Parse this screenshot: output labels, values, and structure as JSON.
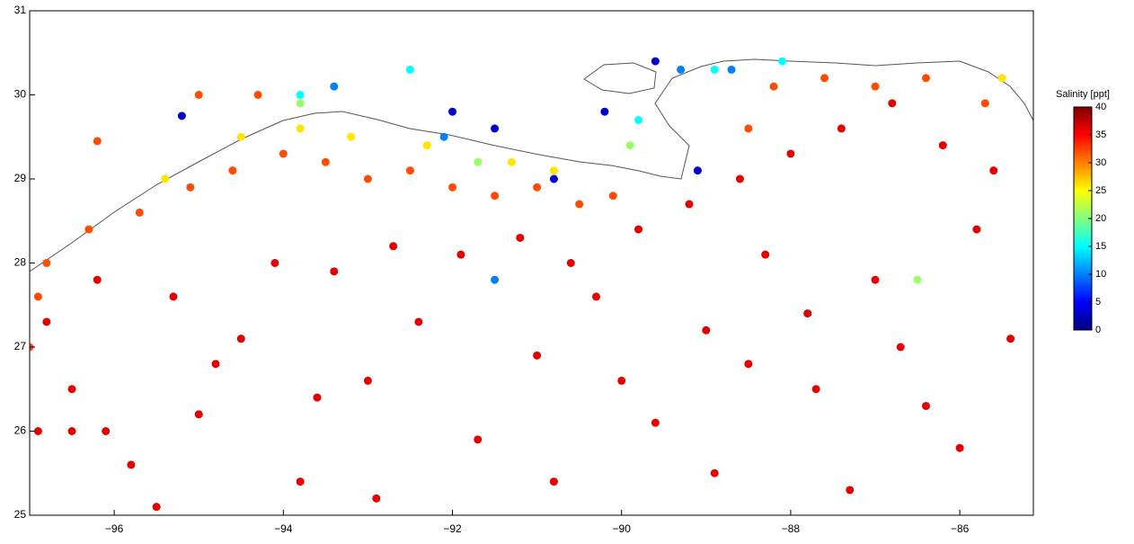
{
  "chart_data": {
    "type": "scatter",
    "xlim": [
      -97,
      -85.13
    ],
    "ylim": [
      25,
      31
    ],
    "xticks": [
      {
        "value": -96,
        "label": "−96"
      },
      {
        "value": -94,
        "label": "−94"
      },
      {
        "value": -92,
        "label": "−92"
      },
      {
        "value": -90,
        "label": "−90"
      },
      {
        "value": -88,
        "label": "−88"
      },
      {
        "value": -86,
        "label": "−86"
      }
    ],
    "yticks": [
      25,
      26,
      27,
      28,
      29,
      30,
      31
    ],
    "colorbar": {
      "label": "Salinity [ppt]",
      "lim": [
        0,
        40
      ],
      "ticks": [
        0,
        5,
        10,
        15,
        20,
        25,
        30,
        35,
        40
      ],
      "colormap": "jet"
    },
    "x": [
      -96.5,
      -95.8,
      -95,
      -94.5,
      -93.8,
      -93,
      -92.4,
      -91.7,
      -91,
      -90.3,
      -89.6,
      -89,
      -88.3,
      -87.7,
      -87,
      -86.4,
      -85.8,
      -85.4,
      -96.8,
      -96.2,
      -95.3,
      -94.1,
      -93.4,
      -92.7,
      -91.9,
      -91.2,
      -90.6,
      -89.8,
      -89.2,
      -88.6,
      -88,
      -87.4,
      -86.8,
      -86.2,
      -85.6,
      -88.9,
      -87.3,
      -86,
      -90.8,
      -92.9,
      -95.5,
      -96.9,
      -96.5,
      -96.1,
      -93.6,
      -94.8,
      -90,
      -88.5,
      -87.8,
      -86.7,
      -96.8,
      -96.3,
      -95.7,
      -95.1,
      -94.6,
      -94,
      -93.5,
      -93,
      -92.5,
      -92,
      -91.5,
      -91,
      -90.5,
      -90.1,
      -96.9,
      -88.5,
      -88.2,
      -87.6,
      -87,
      -86.4,
      -85.7,
      -97,
      -96.2,
      -95,
      -94.3,
      -94.5,
      -93.8,
      -93.2,
      -92.3,
      -91.3,
      -95.4,
      -90.8,
      -85.5,
      -93.8,
      -91.7,
      -89.9,
      -86.5,
      -92.5,
      -93.8,
      -89.8,
      -88.9,
      -88.1,
      -93.4,
      -91.5,
      -89.3,
      -88.7,
      -92.1,
      -95.2,
      -92,
      -91.5,
      -90.2,
      -89.6,
      -89.1,
      -90.8
    ],
    "y": [
      26.5,
      25.6,
      26.2,
      27.1,
      25.4,
      26.6,
      27.3,
      25.9,
      26.9,
      27.6,
      26.1,
      27.2,
      28.1,
      26.5,
      27.8,
      26.3,
      28.4,
      27.1,
      27.3,
      27.8,
      27.6,
      28,
      27.9,
      28.2,
      28.1,
      28.3,
      28,
      28.4,
      28.7,
      29,
      29.3,
      29.6,
      29.9,
      29.4,
      29.1,
      25.5,
      25.3,
      25.8,
      25.4,
      25.2,
      25.1,
      26,
      26,
      26,
      26.4,
      26.8,
      26.6,
      26.8,
      27.4,
      27,
      28,
      28.4,
      28.6,
      28.9,
      29.1,
      29.3,
      29.2,
      29,
      29.1,
      28.9,
      28.8,
      28.9,
      28.7,
      28.8,
      27.6,
      29.6,
      30.1,
      30.2,
      30.1,
      30.2,
      29.9,
      27,
      29.45,
      30,
      30,
      29.5,
      29.6,
      29.5,
      29.4,
      29.2,
      29,
      29.1,
      30.2,
      29.9,
      29.2,
      29.4,
      27.8,
      30.3,
      30,
      29.7,
      30.3,
      30.4,
      30.1,
      27.8,
      30.3,
      30.3,
      29.5,
      29.75,
      29.8,
      29.6,
      29.8,
      30.4,
      29.1,
      29
    ],
    "values": [
      36,
      36,
      36,
      36,
      36,
      36,
      36,
      36,
      36,
      36,
      36,
      36,
      36,
      36,
      36,
      36,
      36,
      36,
      36,
      36,
      36,
      36,
      36,
      36,
      36,
      36,
      36,
      36,
      36,
      36,
      36,
      36,
      36,
      36,
      36,
      36,
      36,
      36,
      36,
      36,
      36,
      36,
      36,
      36,
      36,
      36,
      36,
      36,
      36,
      36,
      32,
      32,
      32,
      32,
      32,
      32,
      32,
      32,
      32,
      32,
      32,
      32,
      32,
      32,
      32,
      32,
      32,
      32,
      32,
      32,
      32,
      32,
      32,
      32,
      32,
      26,
      26,
      26,
      26,
      26,
      26,
      26,
      26,
      21,
      21,
      21,
      21,
      15,
      15,
      15,
      15,
      15,
      10,
      10,
      10,
      10,
      10,
      3,
      3,
      3,
      3,
      3,
      3,
      3
    ]
  }
}
